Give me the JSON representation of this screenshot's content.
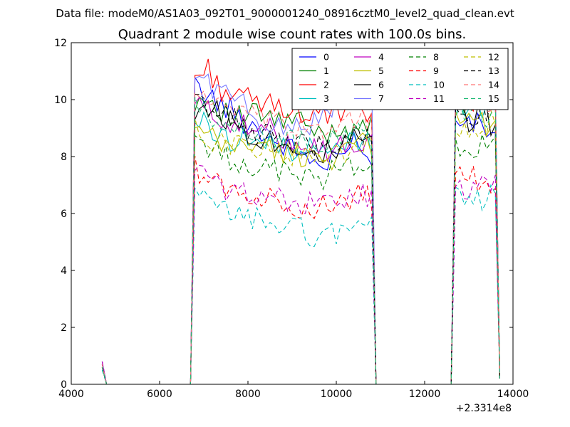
{
  "figure": {
    "suptitle": "Data file: modeM0/AS1A03_092T01_9000001240_08916cztM0_level2_quad_clean.evt"
  },
  "chart_data": {
    "type": "line",
    "title": "Quadrant 2 module wise count rates with 100.0s bins.",
    "xlabel": "",
    "ylabel": "",
    "x_offset_label": "+2.3314e8",
    "xlim": [
      4000,
      14000
    ],
    "ylim": [
      0,
      12
    ],
    "xticks": [
      4000,
      6000,
      8000,
      10000,
      12000,
      14000
    ],
    "xtick_labels": [
      "4000",
      "6000",
      "8000",
      "10000",
      "12000",
      "14000"
    ],
    "yticks": [
      0,
      2,
      4,
      6,
      8,
      10,
      12
    ],
    "ytick_labels": [
      "0",
      "2",
      "4",
      "6",
      "8",
      "10",
      "12"
    ],
    "grid": false,
    "legend_position": "top-right",
    "legend_columns": 4,
    "segments": [
      {
        "start": 4700,
        "bins": 2
      },
      {
        "start": 6700,
        "bins": 41
      },
      {
        "start": 12600,
        "bins": 10
      }
    ],
    "gap_rate": 0,
    "series": [
      {
        "name": "0",
        "color": "#0000ff",
        "dash": "solid",
        "start_rate": 0.8,
        "seg1_shape": [
          10.4,
          10.2,
          9.8,
          9.6,
          9.2,
          9.0,
          8.6,
          8.4,
          8.2,
          8.0,
          7.6,
          7.8,
          8.2,
          8.8,
          7.5
        ],
        "seg2_level": 9.0
      },
      {
        "name": "1",
        "color": "#008000",
        "dash": "solid",
        "start_rate": 0.7,
        "seg1_shape": [
          10.0,
          10.1,
          9.7,
          9.3,
          9.4,
          9.5,
          9.3,
          9.2,
          9.3,
          9.0,
          8.7,
          9.0,
          8.9,
          9.3,
          9.0
        ],
        "seg2_level": 10.1
      },
      {
        "name": "2",
        "color": "#ff0000",
        "dash": "solid",
        "start_rate": 0.8,
        "seg1_shape": [
          10.8,
          11.1,
          10.4,
          10.2,
          10.0,
          9.9,
          9.8,
          9.8,
          9.6,
          9.5,
          9.5,
          9.4,
          9.6,
          9.5,
          9.5
        ],
        "seg2_level": 10.2
      },
      {
        "name": "3",
        "color": "#00bfbf",
        "dash": "solid",
        "start_rate": 0.6,
        "seg1_shape": [
          9.3,
          9.1,
          8.7,
          8.6,
          8.7,
          8.5,
          8.4,
          8.4,
          8.2,
          8.3,
          8.1,
          8.2,
          8.5,
          8.6,
          8.3
        ],
        "seg2_level": 9.8
      },
      {
        "name": "4",
        "color": "#bf00bf",
        "dash": "solid",
        "start_rate": 0.7,
        "seg1_shape": [
          9.9,
          9.6,
          9.4,
          9.2,
          9.0,
          8.9,
          8.9,
          8.7,
          8.6,
          8.5,
          8.3,
          8.2,
          8.4,
          8.5,
          8.3
        ],
        "seg2_level": 10.3
      },
      {
        "name": "5",
        "color": "#bfbf00",
        "dash": "solid",
        "start_rate": 0.6,
        "seg1_shape": [
          8.9,
          8.7,
          8.4,
          8.3,
          8.5,
          8.4,
          8.3,
          8.1,
          8.0,
          8.1,
          7.9,
          8.0,
          8.3,
          8.5,
          8.2
        ],
        "seg2_level": 9.0
      },
      {
        "name": "6",
        "color": "#000000",
        "dash": "solid",
        "start_rate": 0.7,
        "seg1_shape": [
          9.6,
          9.8,
          9.5,
          9.2,
          8.9,
          8.7,
          8.6,
          8.5,
          8.4,
          8.3,
          8.1,
          8.2,
          8.4,
          8.6,
          8.5
        ],
        "seg2_level": 9.3
      },
      {
        "name": "7",
        "color": "#7777ff",
        "dash": "solid",
        "start_rate": 0.8,
        "seg1_shape": [
          10.9,
          10.6,
          10.3,
          10.1,
          9.7,
          9.3,
          9.1,
          9.0,
          9.2,
          9.1,
          9.4,
          9.8,
          10.2,
          10.5,
          10.7
        ],
        "seg2_level": 10.6
      },
      {
        "name": "8",
        "color": "#008000",
        "dash": "dashed",
        "start_rate": 0.6,
        "seg1_shape": [
          8.7,
          8.4,
          8.0,
          7.9,
          7.8,
          7.6,
          7.5,
          7.5,
          7.4,
          7.3,
          7.2,
          7.5,
          7.6,
          7.8,
          7.7
        ],
        "seg2_level": 8.3
      },
      {
        "name": "9",
        "color": "#ff0000",
        "dash": "dashed",
        "start_rate": 0.6,
        "seg1_shape": [
          7.6,
          7.3,
          7.0,
          6.8,
          6.7,
          6.6,
          6.5,
          6.4,
          6.3,
          6.2,
          6.2,
          6.3,
          6.5,
          6.6,
          6.5
        ],
        "seg2_level": 7.3
      },
      {
        "name": "10",
        "color": "#00bfbf",
        "dash": "dashed",
        "start_rate": 0.5,
        "seg1_shape": [
          6.6,
          6.4,
          6.1,
          6.0,
          5.9,
          5.8,
          5.7,
          5.6,
          5.5,
          5.3,
          5.2,
          5.3,
          5.5,
          5.7,
          5.6
        ],
        "seg2_level": 6.4
      },
      {
        "name": "11",
        "color": "#bf00bf",
        "dash": "dashed",
        "start_rate": 0.8,
        "seg1_shape": [
          7.8,
          7.2,
          6.9,
          6.7,
          6.8,
          6.7,
          6.6,
          6.5,
          6.4,
          6.3,
          6.3,
          6.4,
          6.5,
          6.7,
          6.6
        ],
        "seg2_level": 7.0
      },
      {
        "name": "12",
        "color": "#bfbf00",
        "dash": "dashed",
        "start_rate": 0.6,
        "seg1_shape": [
          8.9,
          8.7,
          8.5,
          8.4,
          8.5,
          8.3,
          8.2,
          8.1,
          8.1,
          8.0,
          7.9,
          8.0,
          8.2,
          8.4,
          8.3
        ],
        "seg2_level": 9.2
      },
      {
        "name": "13",
        "color": "#000000",
        "dash": "dashed",
        "start_rate": 0.6,
        "seg1_shape": [
          9.9,
          9.8,
          9.5,
          9.3,
          9.0,
          8.8,
          8.7,
          8.6,
          8.5,
          8.4,
          8.4,
          8.5,
          8.7,
          8.8,
          8.6
        ],
        "seg2_level": 9.5
      },
      {
        "name": "14",
        "color": "#ff7777",
        "dash": "dashed",
        "start_rate": 0.7,
        "seg1_shape": [
          10.3,
          10.1,
          9.8,
          9.6,
          9.4,
          9.3,
          9.2,
          9.1,
          9.0,
          9.0,
          9.0,
          9.1,
          9.3,
          9.4,
          9.3
        ],
        "seg2_level": 10.0
      },
      {
        "name": "15",
        "color": "#22bb77",
        "dash": "dashed",
        "start_rate": 0.6,
        "seg1_shape": [
          9.7,
          9.4,
          9.1,
          9.0,
          8.9,
          8.8,
          8.7,
          8.6,
          8.5,
          8.5,
          8.4,
          8.5,
          8.7,
          8.8,
          8.7
        ],
        "seg2_level": 9.6
      }
    ]
  }
}
